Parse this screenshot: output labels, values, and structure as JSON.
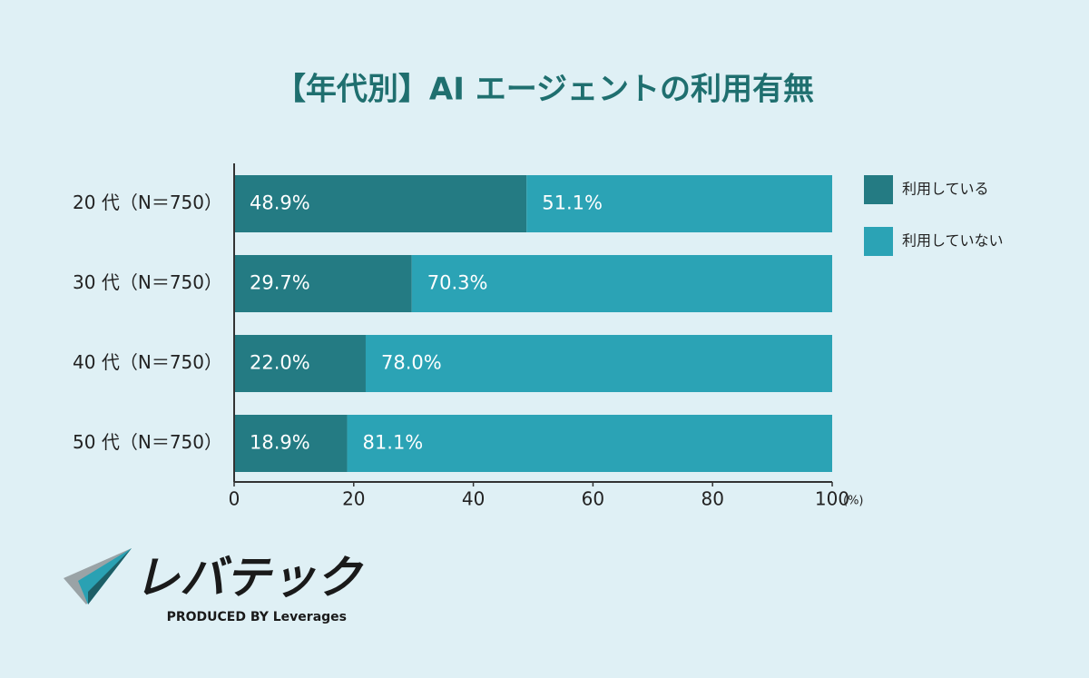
{
  "chart_data": {
    "type": "stacked-barh",
    "title": "【年代別】AI エージェントの利用有無",
    "categories": [
      "20 代（N＝750）",
      "30 代（N＝750）",
      "40 代（N＝750）",
      "50 代（N＝750）"
    ],
    "series": [
      {
        "name": "利用している",
        "color": "#247b83",
        "values": [
          48.9,
          29.7,
          22.0,
          18.9
        ],
        "value_labels": [
          "48.9%",
          "29.7%",
          "22.0%",
          "18.9%"
        ]
      },
      {
        "name": "利用していない",
        "color": "#2ba3b5",
        "values": [
          51.1,
          70.3,
          78.0,
          81.1
        ],
        "value_labels": [
          "51.1%",
          "70.3%",
          "78.0%",
          "81.1%"
        ]
      }
    ],
    "xlim": [
      0,
      100
    ],
    "xticks": [
      0,
      20,
      40,
      60,
      80,
      100
    ],
    "x_unit": "(%)",
    "legend": "right"
  },
  "logo": {
    "name": "レバテック",
    "tagline": "PRODUCED BY Leverages"
  }
}
